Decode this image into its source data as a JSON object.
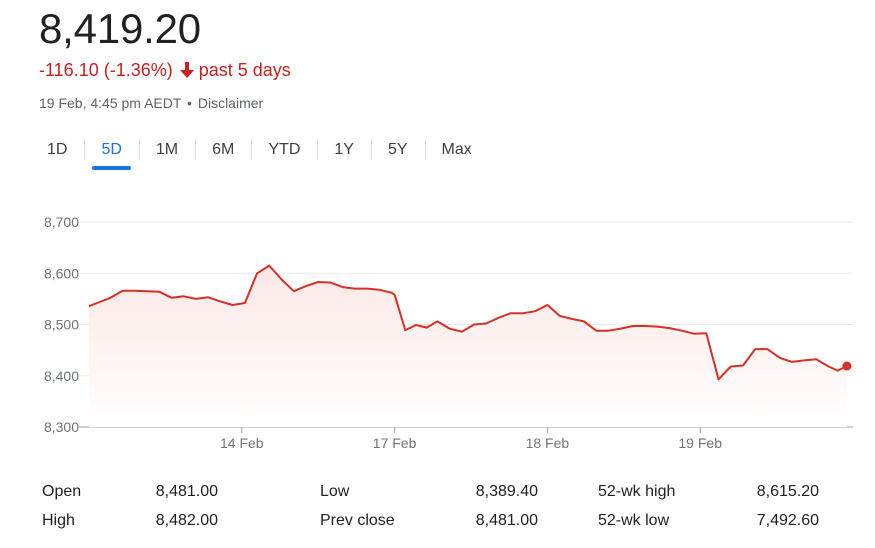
{
  "header": {
    "price": "8,419.20",
    "change": "-116.10 (-1.36%)",
    "period": "past 5 days",
    "timestamp": "19 Feb, 4:45 pm AEDT",
    "separator": "•",
    "disclaimer": "Disclaimer",
    "change_color": "#c5221f",
    "arrow_icon": "arrow-down-icon"
  },
  "tabs": [
    {
      "label": "1D",
      "active": false
    },
    {
      "label": "5D",
      "active": true
    },
    {
      "label": "1M",
      "active": false
    },
    {
      "label": "6M",
      "active": false
    },
    {
      "label": "YTD",
      "active": false
    },
    {
      "label": "1Y",
      "active": false
    },
    {
      "label": "5Y",
      "active": false
    },
    {
      "label": "Max",
      "active": false
    }
  ],
  "chart_data": {
    "type": "area",
    "ylim": [
      8300,
      8700
    ],
    "yticks": [
      8300,
      8400,
      8500,
      8600,
      8700
    ],
    "ytick_labels": [
      "8,300",
      "8,400",
      "8,500",
      "8,600",
      "8,700"
    ],
    "xlim": [
      0,
      5
    ],
    "xticks": [
      1,
      2,
      3,
      4
    ],
    "xtick_labels": [
      "14 Feb",
      "17 Feb",
      "18 Feb",
      "19 Feb"
    ],
    "grid": true,
    "line_color": "#d93025",
    "fill_color": "#fce8e6",
    "series": [
      {
        "x": [
          0.0,
          0.07,
          0.14,
          0.22,
          0.3,
          0.38,
          0.46,
          0.54,
          0.62,
          0.7,
          0.78,
          0.86,
          0.94,
          1.02,
          1.1,
          1.18,
          1.26,
          1.34,
          1.42,
          1.5,
          1.58,
          1.66,
          1.74,
          1.82,
          1.9,
          1.98,
          2.0,
          2.07,
          2.14,
          2.21,
          2.28,
          2.36,
          2.44,
          2.52,
          2.6,
          2.68,
          2.76,
          2.84,
          2.92,
          3.0,
          3.08,
          3.16,
          3.24,
          3.32,
          3.4,
          3.48,
          3.56,
          3.64,
          3.72,
          3.8,
          3.88,
          3.96,
          4.04,
          4.12,
          4.2,
          4.28,
          4.36,
          4.44,
          4.52,
          4.6,
          4.68,
          4.76,
          4.84,
          4.9,
          4.96
        ],
        "values": [
          8536,
          8544,
          8552,
          8566,
          8566,
          8565,
          8564,
          8552,
          8555,
          8550,
          8553,
          8545,
          8538,
          8542,
          8600,
          8615,
          8588,
          8565,
          8575,
          8583,
          8582,
          8573,
          8570,
          8570,
          8568,
          8562,
          8558,
          8489,
          8499,
          8494,
          8506,
          8492,
          8486,
          8500,
          8502,
          8513,
          8522,
          8522,
          8526,
          8538,
          8517,
          8511,
          8506,
          8488,
          8488,
          8492,
          8497,
          8497,
          8496,
          8493,
          8488,
          8482,
          8483,
          8393,
          8418,
          8420,
          8452,
          8452,
          8435,
          8427,
          8430,
          8432,
          8418,
          8410,
          8419
        ]
      }
    ]
  },
  "stats": [
    [
      {
        "label": "Open",
        "value": "8,481.00"
      },
      {
        "label": "High",
        "value": "8,482.00"
      }
    ],
    [
      {
        "label": "Low",
        "value": "8,389.40"
      },
      {
        "label": "Prev close",
        "value": "8,481.00"
      }
    ],
    [
      {
        "label": "52-wk high",
        "value": "8,615.20"
      },
      {
        "label": "52-wk low",
        "value": "7,492.60"
      }
    ]
  ]
}
